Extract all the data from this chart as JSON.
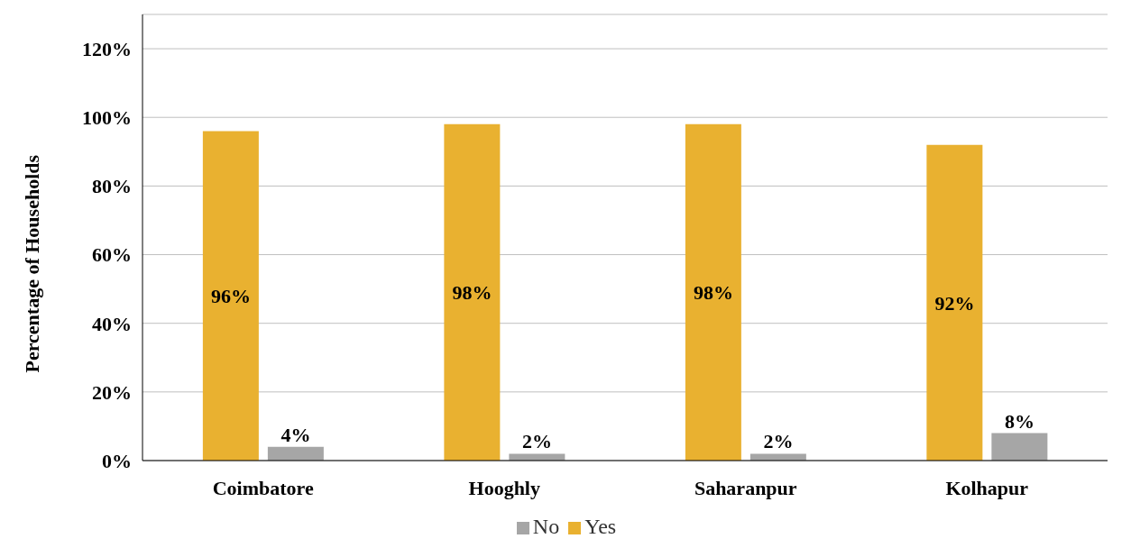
{
  "chart_data": {
    "type": "bar",
    "ylabel": "Percentage of Households",
    "categories": [
      "Coimbatore",
      "Hooghly",
      "Saharanpur",
      "Kolhapur"
    ],
    "series": [
      {
        "name": "Yes",
        "color": "#e9b130",
        "values": [
          96,
          98,
          98,
          92
        ],
        "value_labels": [
          "96%",
          "98%",
          "98%",
          "92%"
        ]
      },
      {
        "name": "No",
        "color": "#a6a6a6",
        "values": [
          4,
          2,
          2,
          8
        ],
        "value_labels": [
          "4%",
          "2%",
          "2%",
          "8%"
        ]
      }
    ],
    "ylim": [
      0,
      130
    ],
    "yticks": [
      {
        "value": 0,
        "label": "0%"
      },
      {
        "value": 20,
        "label": "20%"
      },
      {
        "value": 40,
        "label": "40%"
      },
      {
        "value": 60,
        "label": "60%"
      },
      {
        "value": 80,
        "label": "80%"
      },
      {
        "value": 100,
        "label": "100%"
      },
      {
        "value": 120,
        "label": "120%"
      }
    ],
    "grid": "y",
    "legend": "bottom"
  }
}
